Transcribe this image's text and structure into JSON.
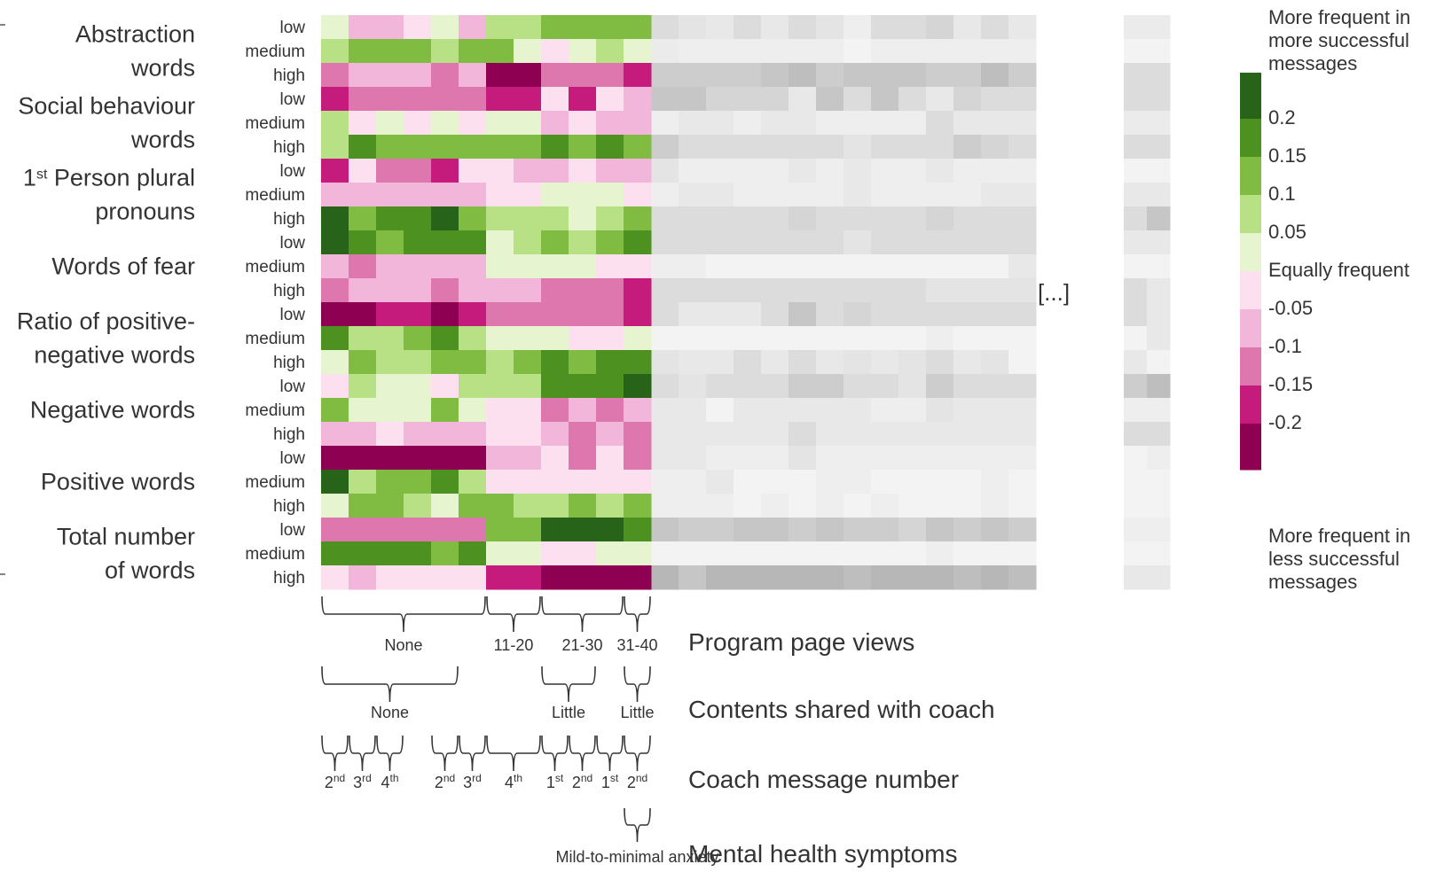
{
  "chart_data": {
    "type": "heatmap",
    "features": [
      {
        "label": [
          "Abstraction",
          "words"
        ]
      },
      {
        "label": [
          "Social behaviour",
          "words"
        ]
      },
      {
        "label": [
          "1st Person plural",
          "pronouns"
        ],
        "sup_index": 0
      },
      {
        "label": [
          "Words of fear"
        ]
      },
      {
        "label": [
          "Ratio of positive-",
          "negative words"
        ]
      },
      {
        "label": [
          "Negative words"
        ]
      },
      {
        "label": [
          "Positive words"
        ]
      },
      {
        "label": [
          "Total number",
          "of words"
        ]
      }
    ],
    "levels": [
      "low",
      "medium",
      "high"
    ],
    "rows": [
      {
        "feature": 0,
        "level": "low",
        "values": [
          0.03,
          -0.08,
          -0.08,
          -0.03,
          0.03,
          -0.08,
          0.07,
          0.07,
          0.12,
          0.12,
          0.12,
          0.12
        ]
      },
      {
        "feature": 0,
        "level": "medium",
        "values": [
          0.07,
          0.12,
          0.12,
          0.12,
          0.07,
          0.12,
          0.12,
          0.03,
          -0.03,
          0.03,
          0.07,
          0.0
        ]
      },
      {
        "feature": 0,
        "level": "high",
        "values": [
          -0.13,
          -0.08,
          -0.08,
          -0.08,
          -0.13,
          -0.08,
          -0.25,
          -0.25,
          -0.13,
          -0.13,
          -0.13,
          -0.18
        ]
      },
      {
        "feature": 1,
        "level": "low",
        "values": [
          -0.18,
          -0.13,
          -0.13,
          -0.13,
          -0.13,
          -0.13,
          -0.18,
          -0.18,
          -0.03,
          -0.18,
          -0.03,
          -0.08
        ]
      },
      {
        "feature": 1,
        "level": "medium",
        "values": [
          0.07,
          -0.03,
          0.03,
          -0.03,
          0.03,
          -0.03,
          0.03,
          0.03,
          -0.08,
          -0.03,
          -0.08,
          -0.08
        ]
      },
      {
        "feature": 1,
        "level": "high",
        "values": [
          0.07,
          0.17,
          0.12,
          0.12,
          0.12,
          0.12,
          0.12,
          0.12,
          0.17,
          0.12,
          0.17,
          0.12
        ]
      },
      {
        "feature": 2,
        "level": "low",
        "values": [
          -0.18,
          -0.03,
          -0.13,
          -0.13,
          -0.18,
          -0.03,
          -0.03,
          -0.08,
          -0.08,
          -0.03,
          -0.08,
          -0.08
        ]
      },
      {
        "feature": 2,
        "level": "medium",
        "values": [
          -0.08,
          -0.08,
          -0.08,
          -0.08,
          -0.08,
          -0.08,
          -0.03,
          -0.03,
          0.03,
          0.03,
          0.03,
          -0.03
        ]
      },
      {
        "feature": 2,
        "level": "high",
        "values": [
          0.22,
          0.12,
          0.17,
          0.17,
          0.22,
          0.12,
          0.07,
          0.07,
          0.07,
          0.03,
          0.07,
          0.12
        ]
      },
      {
        "feature": 3,
        "level": "low",
        "values": [
          0.22,
          0.17,
          0.12,
          0.17,
          0.17,
          0.17,
          0.03,
          0.07,
          0.12,
          0.07,
          0.12,
          0.17
        ]
      },
      {
        "feature": 3,
        "level": "medium",
        "values": [
          -0.08,
          -0.13,
          -0.08,
          -0.08,
          -0.08,
          -0.08,
          0.03,
          0.03,
          0.03,
          0.03,
          -0.03,
          -0.03
        ]
      },
      {
        "feature": 3,
        "level": "high",
        "values": [
          -0.13,
          -0.08,
          -0.08,
          -0.08,
          -0.13,
          -0.08,
          -0.08,
          -0.08,
          -0.13,
          -0.13,
          -0.13,
          -0.18
        ]
      },
      {
        "feature": 4,
        "level": "low",
        "values": [
          -0.25,
          -0.25,
          -0.18,
          -0.18,
          -0.25,
          -0.18,
          -0.13,
          -0.13,
          -0.13,
          -0.13,
          -0.13,
          -0.18
        ]
      },
      {
        "feature": 4,
        "level": "medium",
        "values": [
          0.17,
          0.07,
          0.07,
          0.12,
          0.17,
          0.07,
          0.03,
          0.03,
          0.03,
          -0.03,
          -0.03,
          0.03
        ]
      },
      {
        "feature": 4,
        "level": "high",
        "values": [
          0.03,
          0.12,
          0.07,
          0.07,
          0.12,
          0.12,
          0.07,
          0.12,
          0.17,
          0.12,
          0.17,
          0.17
        ]
      },
      {
        "feature": 5,
        "level": "low",
        "values": [
          -0.03,
          0.07,
          0.03,
          0.03,
          -0.03,
          0.07,
          0.07,
          0.07,
          0.17,
          0.17,
          0.17,
          0.22
        ]
      },
      {
        "feature": 5,
        "level": "medium",
        "values": [
          0.12,
          0.03,
          0.03,
          0.03,
          0.12,
          0.03,
          -0.03,
          -0.03,
          -0.13,
          -0.08,
          -0.13,
          -0.08
        ]
      },
      {
        "feature": 5,
        "level": "high",
        "values": [
          -0.08,
          -0.08,
          -0.03,
          -0.08,
          -0.08,
          -0.08,
          -0.03,
          -0.03,
          -0.08,
          -0.13,
          -0.08,
          -0.13
        ]
      },
      {
        "feature": 6,
        "level": "low",
        "values": [
          -0.25,
          -0.25,
          -0.25,
          -0.25,
          -0.25,
          -0.25,
          -0.08,
          -0.08,
          -0.03,
          -0.13,
          -0.03,
          -0.13
        ]
      },
      {
        "feature": 6,
        "level": "medium",
        "values": [
          0.22,
          0.07,
          0.12,
          0.12,
          0.17,
          0.07,
          -0.03,
          -0.03,
          -0.03,
          -0.03,
          -0.03,
          -0.03
        ]
      },
      {
        "feature": 6,
        "level": "high",
        "values": [
          0.03,
          0.12,
          0.12,
          0.07,
          0.03,
          0.12,
          0.12,
          0.07,
          0.07,
          0.12,
          0.07,
          0.12
        ]
      },
      {
        "feature": 7,
        "level": "low",
        "values": [
          -0.13,
          -0.13,
          -0.13,
          -0.13,
          -0.13,
          -0.13,
          0.12,
          0.12,
          0.22,
          0.22,
          0.22,
          0.17
        ]
      },
      {
        "feature": 7,
        "level": "medium",
        "values": [
          0.17,
          0.17,
          0.17,
          0.17,
          0.12,
          0.17,
          0.03,
          0.03,
          -0.03,
          -0.03,
          0.03,
          0.03
        ]
      },
      {
        "feature": 7,
        "level": "high",
        "values": [
          -0.03,
          -0.08,
          -0.03,
          -0.03,
          -0.03,
          -0.03,
          -0.18,
          -0.18,
          -0.25,
          -0.25,
          -0.25,
          -0.25
        ]
      }
    ],
    "grey_columns": 14,
    "grey_values": [
      [
        0.2,
        0.15,
        0.12,
        0.2,
        0.12,
        0.2,
        0.15,
        0.08,
        0.2,
        0.2,
        0.25,
        0.12,
        0.2,
        0.12
      ],
      [
        0.1,
        0.08,
        0.08,
        0.08,
        0.08,
        0.08,
        0.08,
        0.05,
        0.08,
        0.08,
        0.08,
        0.08,
        0.08,
        0.08
      ],
      [
        0.3,
        0.3,
        0.3,
        0.3,
        0.35,
        0.4,
        0.3,
        0.35,
        0.35,
        0.35,
        0.3,
        0.3,
        0.4,
        0.3
      ],
      [
        0.35,
        0.35,
        0.25,
        0.25,
        0.25,
        0.12,
        0.35,
        0.2,
        0.35,
        0.2,
        0.12,
        0.25,
        0.2,
        0.2
      ],
      [
        0.08,
        0.12,
        0.12,
        0.08,
        0.12,
        0.12,
        0.08,
        0.08,
        0.08,
        0.08,
        0.2,
        0.12,
        0.12,
        0.12
      ],
      [
        0.3,
        0.2,
        0.2,
        0.2,
        0.2,
        0.2,
        0.2,
        0.15,
        0.2,
        0.2,
        0.2,
        0.3,
        0.25,
        0.2
      ],
      [
        0.15,
        0.08,
        0.08,
        0.08,
        0.08,
        0.12,
        0.08,
        0.12,
        0.08,
        0.08,
        0.12,
        0.08,
        0.08,
        0.08
      ],
      [
        0.08,
        0.12,
        0.12,
        0.08,
        0.08,
        0.08,
        0.08,
        0.12,
        0.08,
        0.08,
        0.08,
        0.08,
        0.12,
        0.12
      ],
      [
        0.2,
        0.2,
        0.2,
        0.2,
        0.2,
        0.25,
        0.2,
        0.2,
        0.2,
        0.2,
        0.25,
        0.2,
        0.2,
        0.2
      ],
      [
        0.2,
        0.2,
        0.2,
        0.2,
        0.2,
        0.2,
        0.2,
        0.15,
        0.2,
        0.2,
        0.2,
        0.2,
        0.2,
        0.2
      ],
      [
        0.08,
        0.08,
        0.05,
        0.05,
        0.05,
        0.05,
        0.05,
        0.05,
        0.05,
        0.05,
        0.05,
        0.05,
        0.05,
        0.12
      ],
      [
        0.2,
        0.2,
        0.2,
        0.2,
        0.2,
        0.2,
        0.2,
        0.2,
        0.2,
        0.2,
        0.15,
        0.15,
        0.15,
        0.15
      ],
      [
        0.2,
        0.12,
        0.12,
        0.12,
        0.2,
        0.35,
        0.2,
        0.25,
        0.2,
        0.2,
        0.2,
        0.2,
        0.2,
        0.2
      ],
      [
        0.05,
        0.05,
        0.05,
        0.05,
        0.05,
        0.05,
        0.05,
        0.05,
        0.05,
        0.05,
        0.08,
        0.05,
        0.05,
        0.05
      ],
      [
        0.15,
        0.12,
        0.12,
        0.2,
        0.12,
        0.2,
        0.12,
        0.15,
        0.12,
        0.15,
        0.2,
        0.12,
        0.15,
        0.05
      ],
      [
        0.2,
        0.15,
        0.2,
        0.2,
        0.2,
        0.3,
        0.3,
        0.2,
        0.2,
        0.15,
        0.3,
        0.2,
        0.2,
        0.2
      ],
      [
        0.12,
        0.12,
        0.05,
        0.12,
        0.12,
        0.12,
        0.12,
        0.12,
        0.08,
        0.08,
        0.15,
        0.12,
        0.12,
        0.12
      ],
      [
        0.12,
        0.12,
        0.12,
        0.12,
        0.12,
        0.2,
        0.12,
        0.12,
        0.12,
        0.12,
        0.12,
        0.12,
        0.12,
        0.12
      ],
      [
        0.12,
        0.12,
        0.08,
        0.08,
        0.08,
        0.15,
        0.08,
        0.08,
        0.08,
        0.08,
        0.08,
        0.08,
        0.08,
        0.08
      ],
      [
        0.08,
        0.08,
        0.12,
        0.05,
        0.05,
        0.05,
        0.08,
        0.08,
        0.05,
        0.05,
        0.05,
        0.05,
        0.08,
        0.05
      ],
      [
        0.08,
        0.08,
        0.08,
        0.05,
        0.08,
        0.05,
        0.08,
        0.05,
        0.08,
        0.05,
        0.05,
        0.05,
        0.08,
        0.05
      ],
      [
        0.35,
        0.3,
        0.3,
        0.35,
        0.35,
        0.3,
        0.35,
        0.3,
        0.3,
        0.25,
        0.35,
        0.3,
        0.35,
        0.3
      ],
      [
        0.05,
        0.05,
        0.05,
        0.05,
        0.05,
        0.05,
        0.05,
        0.05,
        0.05,
        0.05,
        0.08,
        0.05,
        0.05,
        0.05
      ],
      [
        0.45,
        0.35,
        0.45,
        0.45,
        0.45,
        0.45,
        0.45,
        0.4,
        0.45,
        0.45,
        0.45,
        0.4,
        0.45,
        0.4
      ]
    ],
    "far_values": [
      [
        0.1,
        0.1
      ],
      [
        0.05,
        0.05
      ],
      [
        0.2,
        0.2
      ],
      [
        0.2,
        0.2
      ],
      [
        0.1,
        0.1
      ],
      [
        0.2,
        0.2
      ],
      [
        0.05,
        0.05
      ],
      [
        0.12,
        0.12
      ],
      [
        0.2,
        0.35
      ],
      [
        0.12,
        0.12
      ],
      [
        0.05,
        0.05
      ],
      [
        0.2,
        0.12
      ],
      [
        0.2,
        0.12
      ],
      [
        0.05,
        0.12
      ],
      [
        0.12,
        0.05
      ],
      [
        0.3,
        0.4
      ],
      [
        0.08,
        0.08
      ],
      [
        0.2,
        0.2
      ],
      [
        0.05,
        0.08
      ],
      [
        0.05,
        0.05
      ],
      [
        0.05,
        0.05
      ],
      [
        0.08,
        0.08
      ],
      [
        0.05,
        0.05
      ],
      [
        0.12,
        0.12
      ]
    ],
    "ellipsis": "[...]",
    "color_scale": {
      "ticks": [
        "0.2",
        "0.15",
        "0.1",
        "0.05",
        "Equally frequent",
        "-0.05",
        "-0.1",
        "-0.15",
        "-0.2"
      ],
      "colors": [
        "#276419",
        "#4d9221",
        "#7fbc41",
        "#b8e186",
        "#e6f5d0",
        "#fde0ef",
        "#f1b6da",
        "#de77ae",
        "#c51b7d",
        "#8e0152"
      ],
      "top_label": [
        "More frequent in",
        "more successful",
        "messages"
      ],
      "bottom_label": [
        "More frequent in",
        "less successful",
        "messages"
      ]
    },
    "annotations": {
      "program_page_views": {
        "title": "Program page views",
        "groups": [
          {
            "label": "None",
            "span": [
              0,
              6
            ]
          },
          {
            "label": "11-20",
            "span": [
              6,
              8
            ]
          },
          {
            "label": "21-30",
            "span": [
              8,
              11
            ]
          },
          {
            "label": "31-40",
            "span": [
              11,
              12
            ]
          }
        ]
      },
      "contents_shared": {
        "title": "Contents shared with coach",
        "groups": [
          {
            "label": "None",
            "span": [
              0,
              5
            ]
          },
          {
            "label": "Little",
            "span": [
              8,
              10
            ]
          },
          {
            "label": "Little",
            "span": [
              11,
              12
            ]
          }
        ]
      },
      "coach_message_number": {
        "title": "Coach message number",
        "groups": [
          {
            "label": "2",
            "sup": "nd",
            "span": [
              0,
              1
            ]
          },
          {
            "label": "3",
            "sup": "rd",
            "span": [
              1,
              2
            ]
          },
          {
            "label": "4",
            "sup": "th",
            "span": [
              2,
              3
            ]
          },
          {
            "label": "2",
            "sup": "nd",
            "span": [
              4,
              5
            ]
          },
          {
            "label": "3",
            "sup": "rd",
            "span": [
              5,
              6
            ]
          },
          {
            "label": "4",
            "sup": "th",
            "span": [
              6,
              8
            ]
          },
          {
            "label": "1",
            "sup": "st",
            "span": [
              8,
              9
            ]
          },
          {
            "label": "2",
            "sup": "nd",
            "span": [
              9,
              10
            ]
          },
          {
            "label": "1",
            "sup": "st",
            "span": [
              10,
              11
            ]
          },
          {
            "label": "2",
            "sup": "nd",
            "span": [
              11,
              12
            ]
          }
        ]
      },
      "mental_health": {
        "title": "Mental health symptoms",
        "groups": [
          {
            "label": "Mild-to-minimal anxiety",
            "span": [
              11,
              12
            ]
          }
        ]
      }
    }
  }
}
